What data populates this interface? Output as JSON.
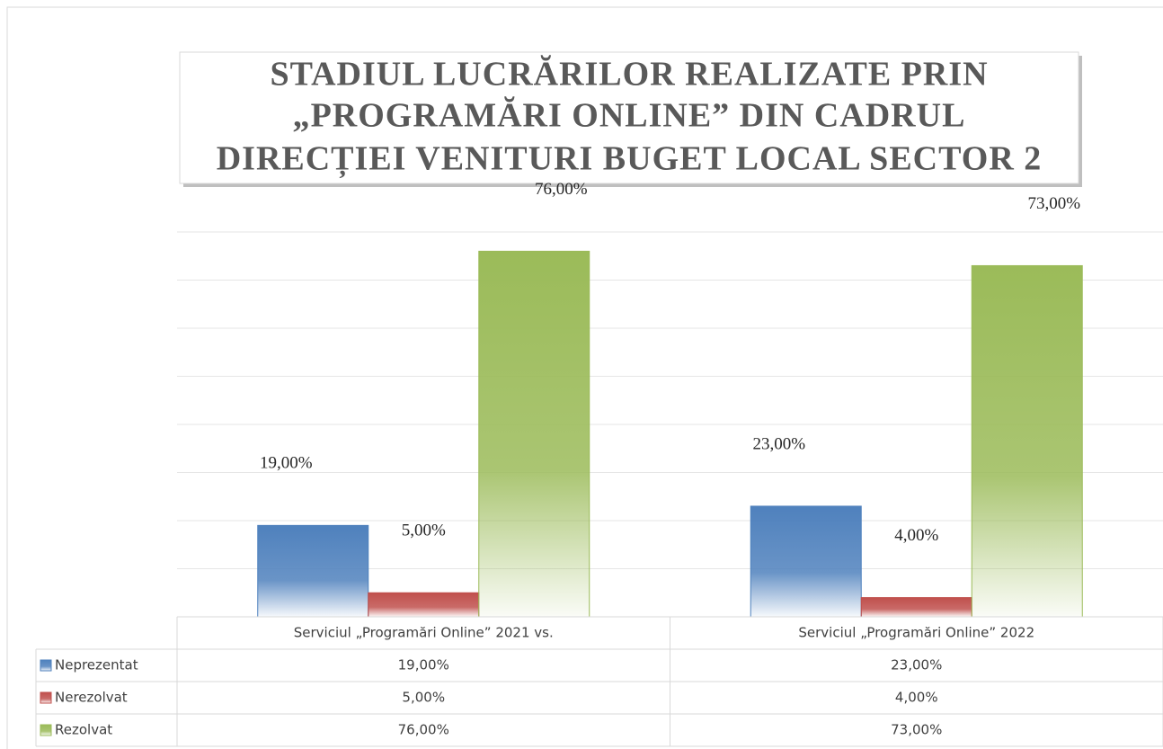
{
  "chart_data": {
    "type": "bar",
    "title": [
      "STADIUL LUCRĂRILOR REALIZATE PRIN",
      "„PROGRAMĂRI ONLINE” DIN CADRUL",
      "DIRECȚIEI VENITURI BUGET LOCAL SECTOR 2"
    ],
    "categories": [
      "Serviciul „Programări Online” 2021 vs.",
      "Serviciul „Programări Online” 2022"
    ],
    "series": [
      {
        "name": "Neprezentat",
        "color": "#4f81bd",
        "values": [
          19,
          23
        ],
        "value_labels": [
          "19,00%",
          "23,00%"
        ]
      },
      {
        "name": "Nerezolvat",
        "color": "#c0504d",
        "values": [
          5,
          4
        ],
        "value_labels": [
          "5,00%",
          "4,00%"
        ]
      },
      {
        "name": "Rezolvat",
        "color": "#9bbb59",
        "values": [
          76,
          73
        ],
        "value_labels": [
          "76,00%",
          "73,00%"
        ]
      }
    ],
    "ylim": [
      0,
      80
    ],
    "yticks": [
      0,
      10,
      20,
      30,
      40,
      50,
      60,
      70,
      80
    ],
    "grid": true
  }
}
